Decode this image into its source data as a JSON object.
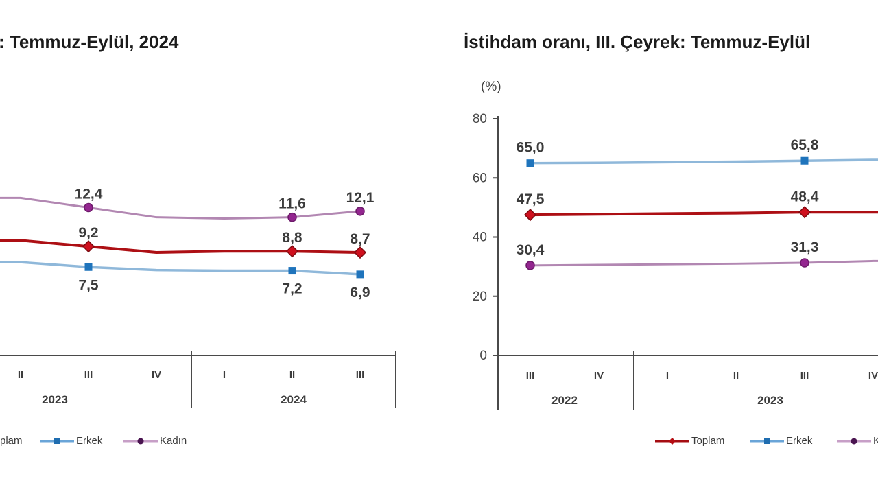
{
  "chart_data": [
    {
      "type": "line",
      "title": ": Temmuz-Eylül, 2024",
      "categories": [
        "II",
        "III",
        "IV",
        "I",
        "II",
        "III"
      ],
      "year_groups": [
        {
          "label": "2023",
          "span": [
            0,
            2
          ]
        },
        {
          "label": "2024",
          "span": [
            3,
            5
          ]
        }
      ],
      "yaxis_visible": false,
      "cropped_left": true,
      "series": [
        {
          "key": "toplam",
          "name": "Toplam",
          "color": "#ad0f14",
          "marker": "diamond",
          "marker_color": "#cf101e",
          "values": [
            9.7,
            9.2,
            8.7,
            8.8,
            8.8,
            8.7
          ],
          "labels": {
            "1": "9,2",
            "4": "8,8",
            "5": "8,7"
          },
          "label_side": "above"
        },
        {
          "key": "erkek",
          "name": "Erkek",
          "color": "#8fb8da",
          "marker": "square",
          "marker_color": "#1f74bc",
          "values": [
            7.9,
            7.5,
            7.25,
            7.2,
            7.2,
            6.9
          ],
          "labels": {
            "1": "7,5",
            "4": "7,2",
            "5": "6,9"
          },
          "label_side": "below"
        },
        {
          "key": "kadin",
          "name": "Kadın",
          "color": "#b287b2",
          "marker": "circle",
          "marker_color": "#93268f",
          "values": [
            13.2,
            12.4,
            11.6,
            11.5,
            11.6,
            12.1
          ],
          "labels": {
            "1": "12,4",
            "4": "11,6",
            "5": "12,1"
          },
          "label_side": "above"
        }
      ]
    },
    {
      "type": "line",
      "title": "İstihdam oranı, III. Çeyrek: Temmuz-Eylül",
      "ylabel": "(%)",
      "ylim": [
        0,
        80
      ],
      "yticks": [
        0,
        20,
        40,
        60,
        80
      ],
      "categories": [
        "III",
        "IV",
        "I",
        "II",
        "III",
        "IV"
      ],
      "year_groups": [
        {
          "label": "2022",
          "span": [
            0,
            1
          ]
        },
        {
          "label": "2023",
          "span": [
            2,
            5
          ]
        }
      ],
      "yaxis_visible": true,
      "cropped_right": true,
      "series": [
        {
          "key": "toplam",
          "name": "Toplam",
          "color": "#ad0f14",
          "marker": "diamond",
          "marker_color": "#cf101e",
          "values": [
            47.5,
            47.7,
            47.9,
            48.1,
            48.4,
            48.4
          ],
          "labels": {
            "0": "47,5",
            "4": "48,4"
          },
          "label_side": "above"
        },
        {
          "key": "erkek",
          "name": "Erkek",
          "color": "#8fb8da",
          "marker": "square",
          "marker_color": "#1f74bc",
          "values": [
            65.0,
            65.1,
            65.3,
            65.5,
            65.8,
            66.1
          ],
          "labels": {
            "0": "65,0",
            "4": "65,8"
          },
          "label_side": "above"
        },
        {
          "key": "kadin",
          "name": "Kadın",
          "color": "#b287b2",
          "marker": "circle",
          "marker_color": "#93268f",
          "values": [
            30.4,
            30.6,
            30.8,
            31.0,
            31.3,
            31.9
          ],
          "labels": {
            "0": "30,4",
            "4": "31,3"
          },
          "label_side": "above"
        }
      ]
    }
  ],
  "legends": {
    "left": {
      "items": [
        {
          "key": "toplam-partial",
          "label": "plam"
        },
        {
          "key": "erkek",
          "label": "Erkek",
          "line_color": "#6aa5d8",
          "marker": "square",
          "marker_color": "#1f6db0"
        },
        {
          "key": "kadin",
          "label": "Kadın",
          "line_color": "#c79fc7",
          "marker": "circle",
          "marker_color": "#4a1450"
        }
      ]
    },
    "right": {
      "items": [
        {
          "key": "toplam",
          "label": "Toplam",
          "line_color": "#a50d12",
          "marker": "diamond",
          "marker_color": "#b50d13"
        },
        {
          "key": "erkek",
          "label": "Erkek",
          "line_color": "#6aa5d8",
          "marker": "square",
          "marker_color": "#1f6db0"
        },
        {
          "key": "kadin-partial",
          "label": "K",
          "line_color": "#c79fc7",
          "marker": "circle",
          "marker_color": "#4a1450"
        }
      ]
    }
  },
  "colors": {
    "toplam": "#ad0f14",
    "erkek_line": "#8fb8da",
    "erkek_marker": "#1f74bc",
    "kadin_line": "#b287b2",
    "kadin_marker": "#93268f",
    "axis": "#4a4a4a",
    "text": "#3b3b3b"
  }
}
